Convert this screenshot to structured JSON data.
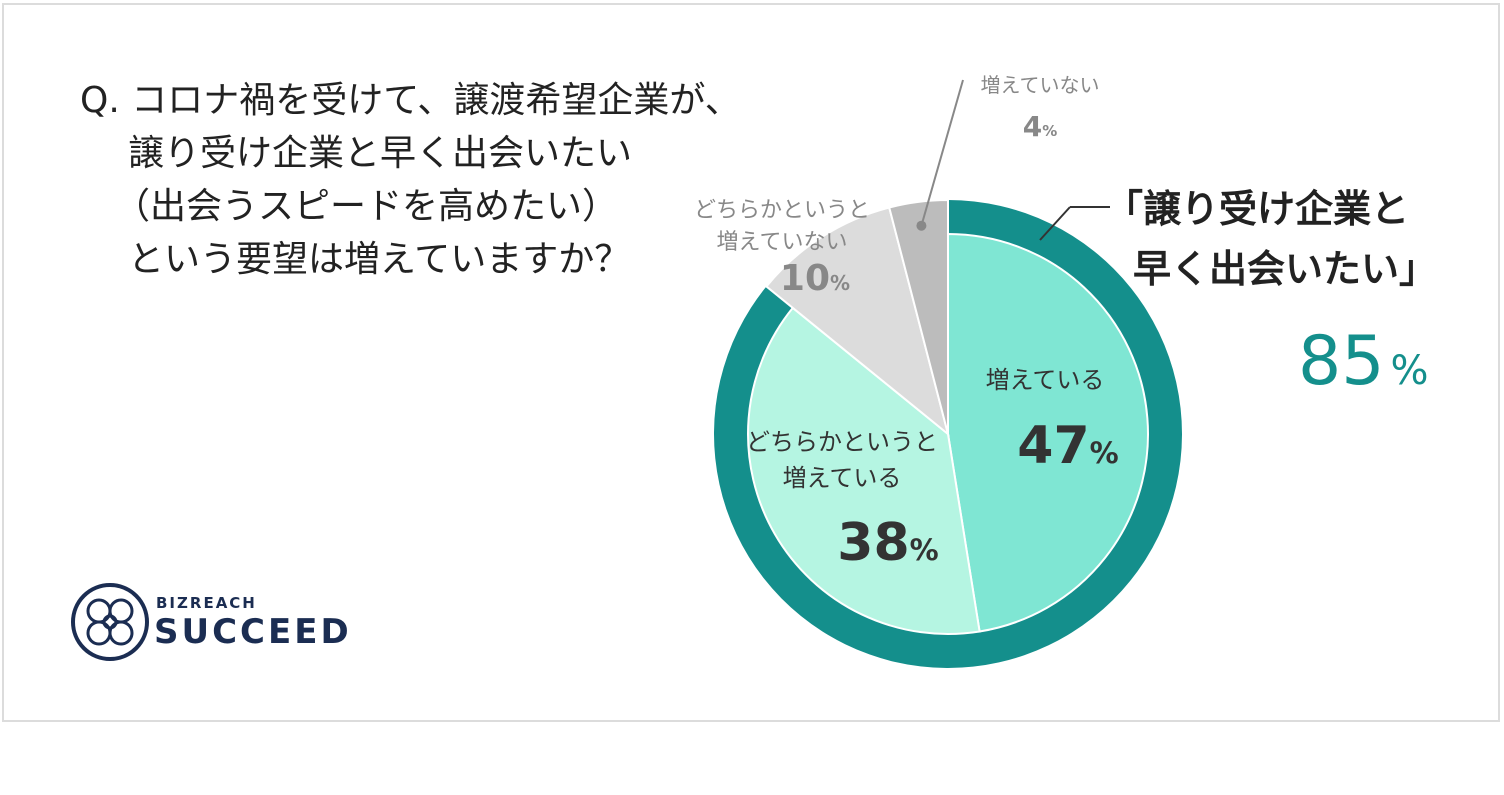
{
  "question": {
    "prefix": "Q.",
    "line1": "コロナ禍を受けて、譲渡希望企業が、",
    "line2": "譲り受け企業と早く出会いたい",
    "line3": "（出会うスピードを高めたい）",
    "line4": "という要望は増えていますか？"
  },
  "callout": {
    "line1": "「譲り受け企業と",
    "line2": "早く出会いたい」",
    "value": "85",
    "unit": "%"
  },
  "logo": {
    "top": "BIZREACH",
    "main": "SUCCEED"
  },
  "colors": {
    "ring": "#148f8c",
    "callout_value": "#148f8c",
    "slice_increasing": "#7fe6d3",
    "slice_somewhat_increasing": "#b5f5e2",
    "slice_somewhat_not": "#dcdcdc",
    "slice_not": "#bcbcbc",
    "logo": "#1b2d52"
  },
  "chart_data": {
    "type": "pie",
    "title": "",
    "series": [
      {
        "slices": [
          {
            "label": "増えている",
            "label_lines": [
              "増えている"
            ],
            "value": 47,
            "unit": "%"
          },
          {
            "label": "どちらかというと増えている",
            "label_lines": [
              "どちらかというと",
              "増えている"
            ],
            "value": 38,
            "unit": "%"
          },
          {
            "label": "どちらかというと増えていない",
            "label_lines": [
              "どちらかというと",
              "増えていない"
            ],
            "value": 10,
            "unit": "%"
          },
          {
            "label": "増えていない",
            "label_lines": [
              "増えていない"
            ],
            "value": 4,
            "unit": "%"
          }
        ]
      }
    ],
    "highlight": {
      "label": "「譲り受け企業と早く出会いたい」",
      "value": 85,
      "unit": "%",
      "covers": [
        "増えている",
        "どちらかというと増えている"
      ]
    }
  }
}
